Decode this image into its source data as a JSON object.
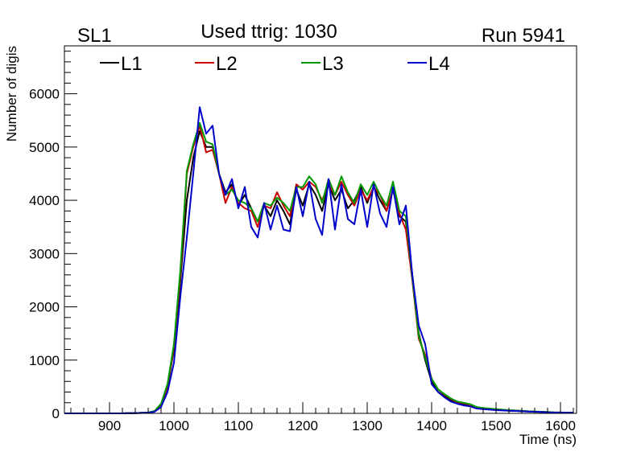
{
  "chart_data": {
    "type": "line",
    "title": "Used ttrig: 1030",
    "left_label": "SL1",
    "right_label": "Run 5941",
    "xlabel": "Time (ns)",
    "ylabel": "Number of digis",
    "xlim": [
      830,
      1625
    ],
    "ylim": [
      0,
      6900
    ],
    "x_ticks": [
      900,
      1000,
      1100,
      1200,
      1300,
      1400,
      1500,
      1600
    ],
    "y_ticks": [
      0,
      1000,
      2000,
      3000,
      4000,
      5000,
      6000
    ],
    "x_tick_labels": [
      "900",
      "1000",
      "1100",
      "1200",
      "1300",
      "1400",
      "1500",
      "1600"
    ],
    "y_tick_labels": [
      "0",
      "1000",
      "2000",
      "3000",
      "4000",
      "5000",
      "6000"
    ],
    "x": [
      830,
      840,
      850,
      860,
      870,
      880,
      890,
      900,
      910,
      920,
      930,
      940,
      950,
      960,
      970,
      980,
      990,
      1000,
      1010,
      1020,
      1030,
      1040,
      1050,
      1060,
      1070,
      1080,
      1090,
      1100,
      1110,
      1120,
      1130,
      1140,
      1150,
      1160,
      1170,
      1180,
      1190,
      1200,
      1210,
      1220,
      1230,
      1240,
      1250,
      1260,
      1270,
      1280,
      1290,
      1300,
      1310,
      1320,
      1330,
      1340,
      1350,
      1360,
      1370,
      1380,
      1390,
      1400,
      1410,
      1420,
      1430,
      1440,
      1450,
      1460,
      1470,
      1480,
      1490,
      1500,
      1510,
      1520,
      1530,
      1540,
      1550,
      1560,
      1570,
      1580,
      1590,
      1600,
      1610,
      1620
    ],
    "series": [
      {
        "name": "L1",
        "color": "#000000",
        "values": [
          0,
          0,
          0,
          0,
          0,
          0,
          0,
          0,
          0,
          0,
          5,
          5,
          10,
          15,
          40,
          150,
          500,
          1200,
          2500,
          4000,
          4800,
          5300,
          5000,
          5000,
          4500,
          4150,
          4300,
          3900,
          4100,
          3850,
          3600,
          3900,
          3700,
          4000,
          3800,
          3550,
          4200,
          3900,
          4300,
          4100,
          3800,
          4300,
          4000,
          4200,
          3850,
          4000,
          4250,
          3950,
          4250,
          4000,
          3800,
          4200,
          3700,
          3600,
          2600,
          1500,
          1000,
          600,
          400,
          320,
          250,
          200,
          180,
          150,
          100,
          90,
          80,
          70,
          60,
          50,
          45,
          40,
          35,
          30,
          25,
          20,
          15,
          15,
          10,
          10
        ]
      },
      {
        "name": "L2",
        "color": "#cc0000",
        "values": [
          0,
          0,
          0,
          0,
          0,
          0,
          0,
          0,
          0,
          0,
          5,
          5,
          10,
          15,
          40,
          160,
          520,
          1250,
          2600,
          4500,
          5000,
          5400,
          4900,
          4950,
          4500,
          3950,
          4250,
          3950,
          3850,
          3800,
          3500,
          3900,
          3850,
          4150,
          3900,
          3700,
          4300,
          4200,
          4350,
          4250,
          4000,
          4300,
          4100,
          4350,
          4100,
          3900,
          4200,
          4000,
          4250,
          4100,
          3800,
          4200,
          3750,
          3450,
          2500,
          1400,
          1100,
          650,
          450,
          350,
          270,
          210,
          190,
          160,
          110,
          95,
          85,
          75,
          65,
          55,
          50,
          45,
          38,
          32,
          28,
          22,
          18,
          16,
          12,
          10
        ]
      },
      {
        "name": "L3",
        "color": "#009900",
        "values": [
          0,
          0,
          0,
          0,
          0,
          0,
          0,
          0,
          0,
          0,
          5,
          5,
          10,
          15,
          45,
          180,
          550,
          1300,
          2700,
          4550,
          5050,
          5450,
          5100,
          5050,
          4500,
          4100,
          4200,
          4000,
          3950,
          3850,
          3600,
          3950,
          3900,
          4050,
          3950,
          3800,
          4250,
          4250,
          4450,
          4300,
          3950,
          4400,
          4100,
          4450,
          4150,
          3950,
          4300,
          4100,
          4350,
          4100,
          3900,
          4350,
          3800,
          3700,
          2550,
          1450,
          1050,
          650,
          450,
          360,
          280,
          220,
          200,
          170,
          120,
          100,
          90,
          80,
          70,
          60,
          55,
          48,
          40,
          35,
          30,
          25,
          20,
          17,
          14,
          12
        ]
      },
      {
        "name": "L4",
        "color": "#0000cc",
        "values": [
          0,
          0,
          0,
          0,
          0,
          0,
          0,
          0,
          0,
          0,
          5,
          5,
          8,
          12,
          30,
          120,
          400,
          950,
          2200,
          3300,
          4500,
          5750,
          5250,
          5400,
          4500,
          4100,
          4400,
          3850,
          4250,
          3500,
          3300,
          3950,
          3450,
          3900,
          3450,
          3420,
          4250,
          3700,
          4350,
          3650,
          3350,
          4400,
          3450,
          4300,
          3650,
          3550,
          4200,
          3500,
          4300,
          3750,
          3500,
          4250,
          3550,
          3900,
          2600,
          1650,
          1300,
          550,
          400,
          300,
          220,
          180,
          150,
          130,
          90,
          80,
          70,
          60,
          55,
          50,
          45,
          40,
          35,
          30,
          25,
          20,
          15,
          15,
          12,
          10
        ]
      }
    ],
    "legend": [
      {
        "label": "L1",
        "color": "#000000"
      },
      {
        "label": "L2",
        "color": "#cc0000"
      },
      {
        "label": "L3",
        "color": "#009900"
      },
      {
        "label": "L4",
        "color": "#0000cc"
      }
    ],
    "legend_position": "top-left",
    "grid": false
  }
}
